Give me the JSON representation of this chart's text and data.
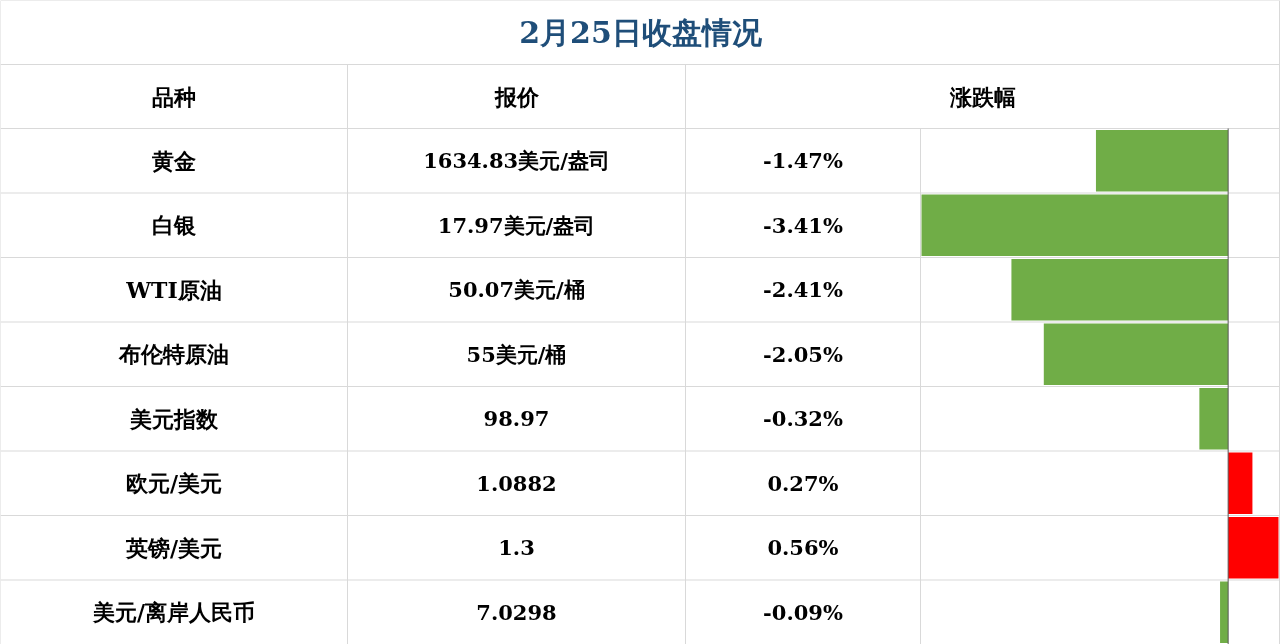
{
  "chart_data": {
    "type": "bar",
    "orientation": "horizontal",
    "title": "2月25日收盘情况",
    "ylabel": "品种",
    "xlabel": "涨跌幅",
    "categories": [
      "黄金",
      "白银",
      "WTI原油",
      "布伦特原油",
      "美元指数",
      "欧元/美元",
      "英镑/美元",
      "美元/离岸人民币"
    ],
    "values": [
      -1.47,
      -3.41,
      -2.41,
      -2.05,
      -0.32,
      0.27,
      0.56,
      -0.09
    ],
    "colors": [
      "#70ad47",
      "#70ad47",
      "#70ad47",
      "#70ad47",
      "#70ad47",
      "#ff0000",
      "#ff0000",
      "#70ad47"
    ],
    "value_labels": [
      "-1.47%",
      "-3.41%",
      "-2.41%",
      "-2.05%",
      "-0.32%",
      "0.27%",
      "0.56%",
      "-0.09%"
    ],
    "annotations": [
      "报价",
      "1634.83美元/盎司",
      "17.97美元/盎司",
      "50.07美元/桶",
      "55美元/桶",
      "98.97",
      "1.0882",
      "1.3",
      "7.0298"
    ],
    "xlim": [
      -3.41,
      0.56
    ],
    "tick_labels": false
  }
}
